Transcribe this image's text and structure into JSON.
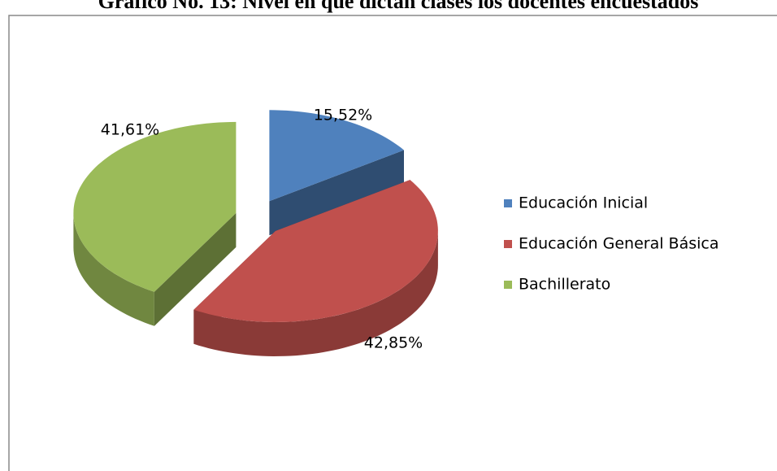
{
  "chart_data": {
    "type": "pie",
    "title": "Gráfico No. 13: Nivel en que dictan clases los docentes encuestados",
    "categories": [
      "Educación Inicial",
      "Educación General Básica",
      "Bachillerato"
    ],
    "values": [
      15.52,
      42.85,
      41.61
    ],
    "value_labels": [
      "15,52%",
      "42,85%",
      "41,61%"
    ],
    "colors": [
      "#4f81bd",
      "#c0504d",
      "#9bbb59"
    ],
    "legend": "right"
  }
}
